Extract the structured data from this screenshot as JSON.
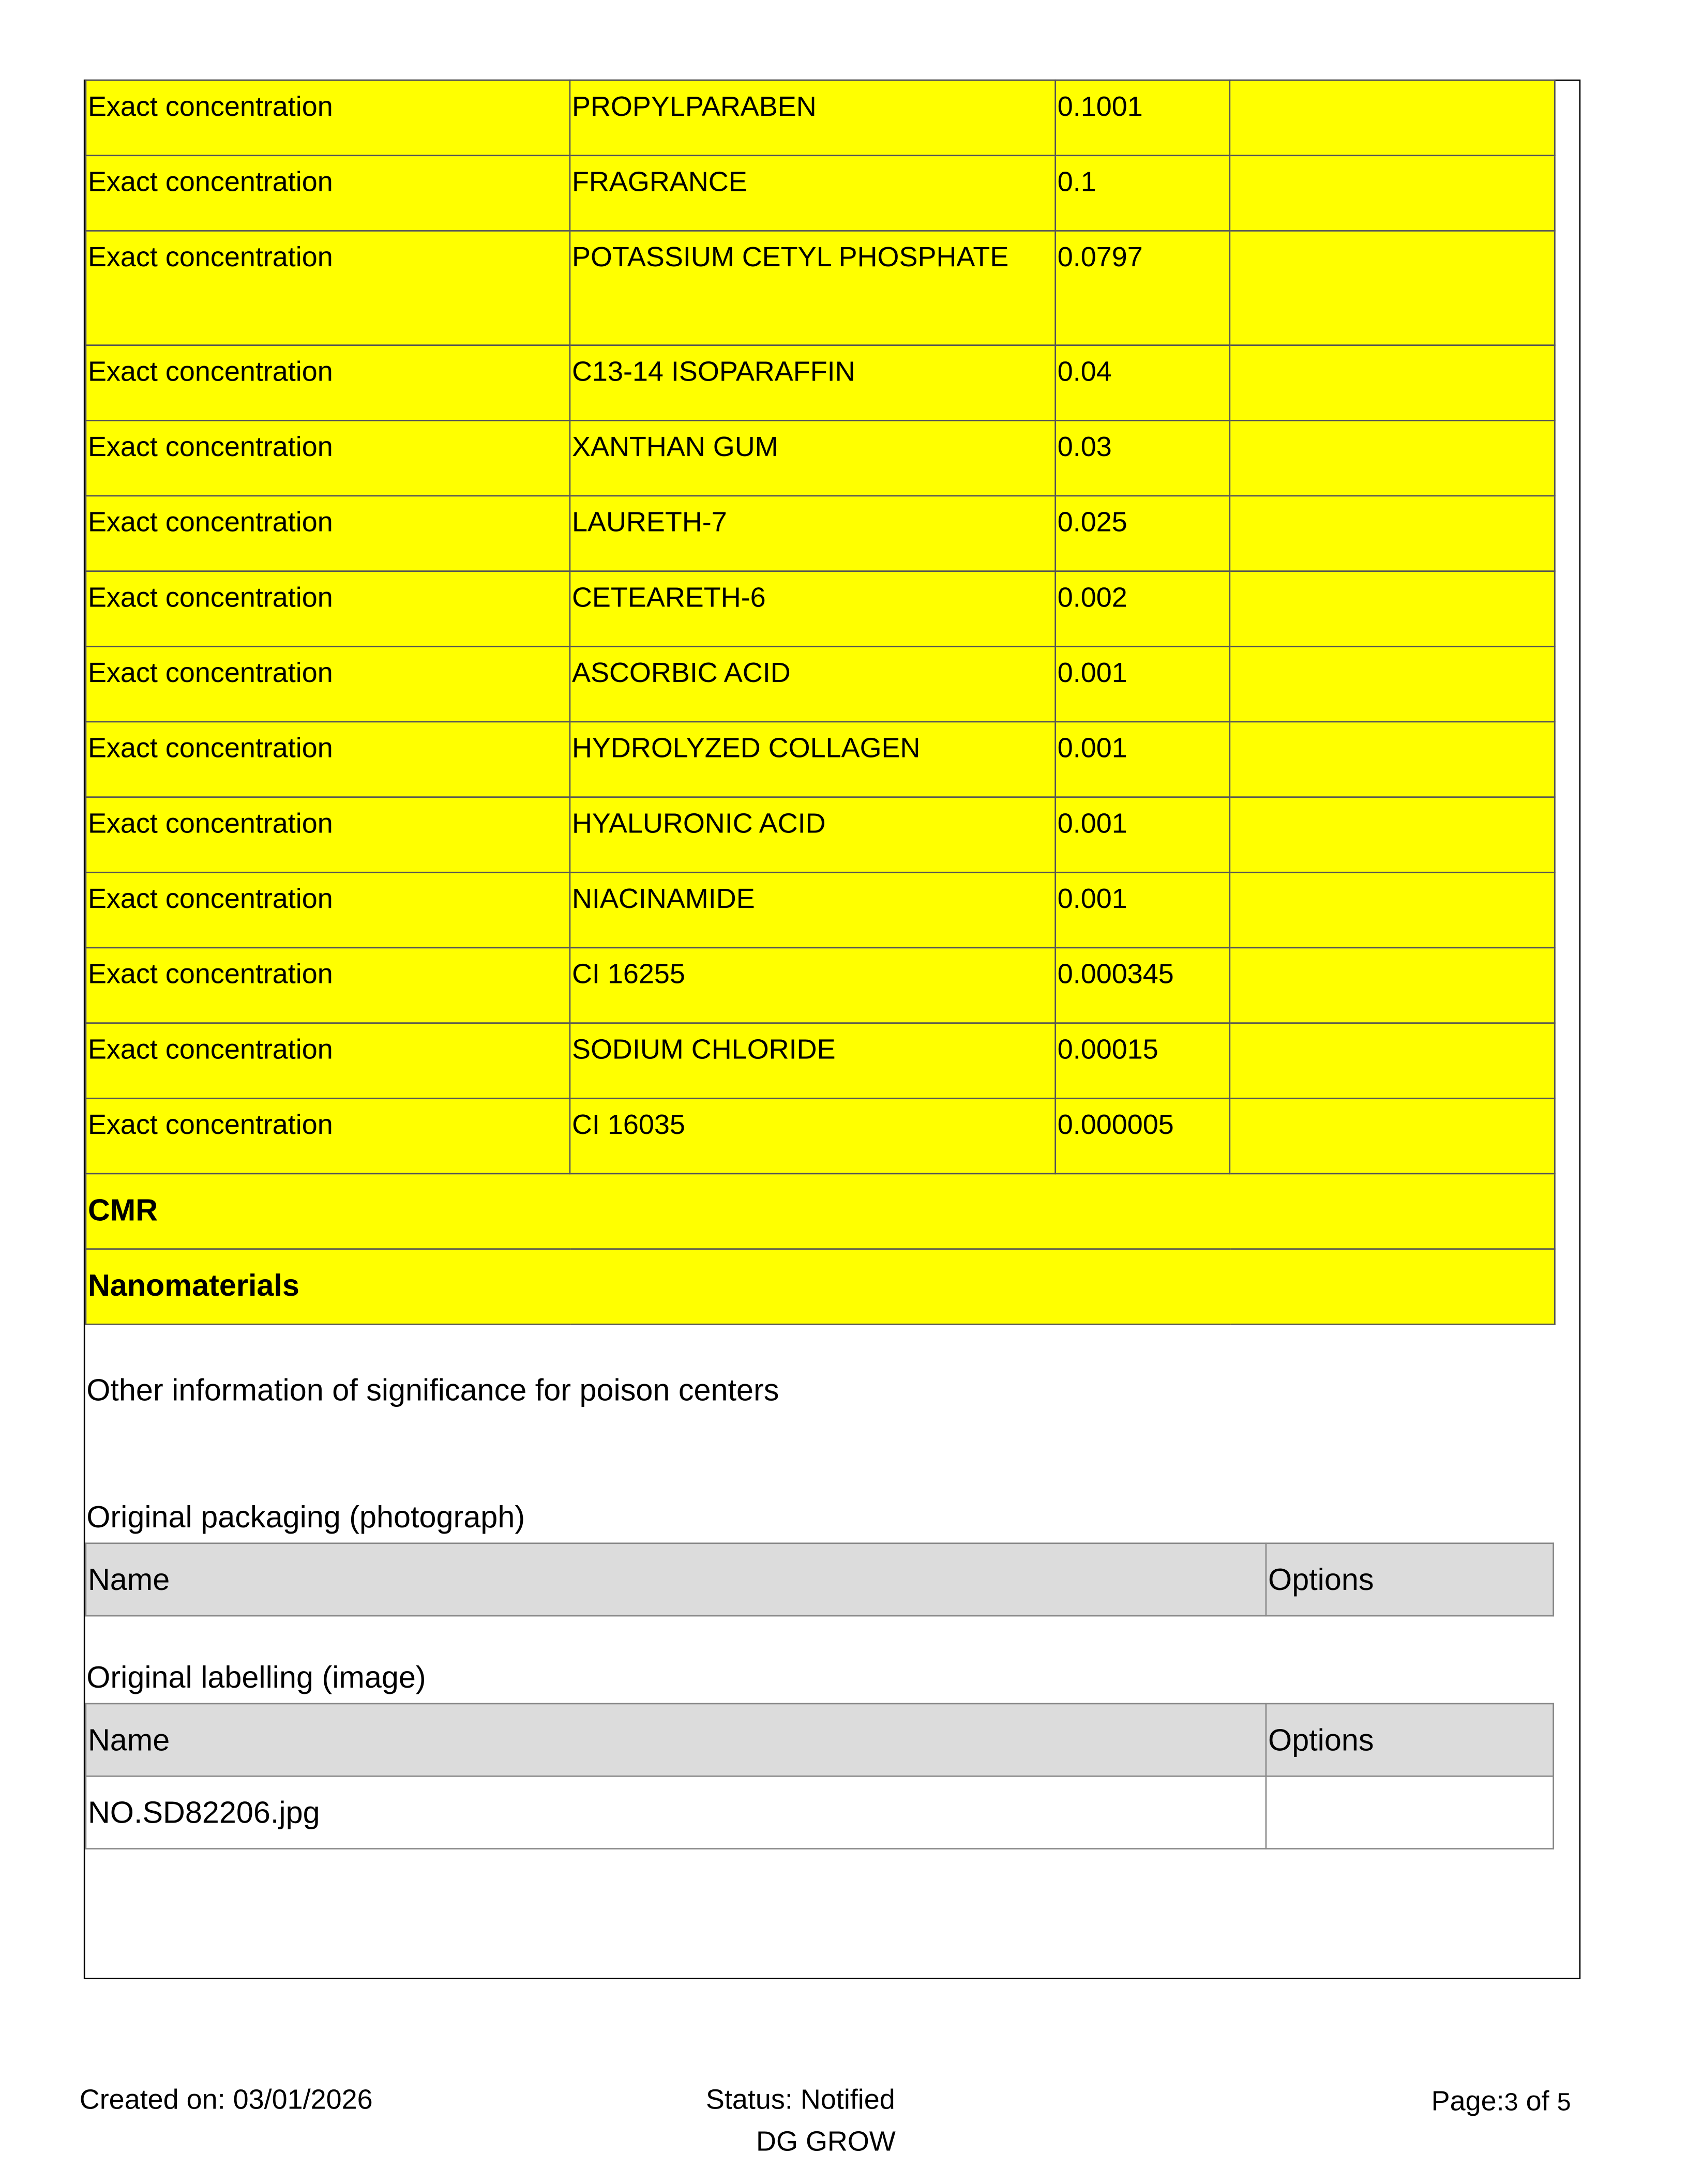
{
  "concentration_rows": [
    {
      "type": "Exact concentration",
      "ingredient": "PROPYLPARABEN",
      "value": "0.1001",
      "extra": ""
    },
    {
      "type": "Exact concentration",
      "ingredient": "FRAGRANCE",
      "value": "0.1",
      "extra": ""
    },
    {
      "type": "Exact concentration",
      "ingredient": "POTASSIUM CETYL PHOSPHATE",
      "value": "0.0797",
      "extra": ""
    },
    {
      "type": "Exact concentration",
      "ingredient": "C13-14 ISOPARAFFIN",
      "value": "0.04",
      "extra": ""
    },
    {
      "type": "Exact concentration",
      "ingredient": "XANTHAN GUM",
      "value": "0.03",
      "extra": ""
    },
    {
      "type": "Exact concentration",
      "ingredient": "LAURETH-7",
      "value": "0.025",
      "extra": ""
    },
    {
      "type": "Exact concentration",
      "ingredient": "CETEARETH-6",
      "value": "0.002",
      "extra": ""
    },
    {
      "type": "Exact concentration",
      "ingredient": "ASCORBIC ACID",
      "value": "0.001",
      "extra": ""
    },
    {
      "type": "Exact concentration",
      "ingredient": "HYDROLYZED COLLAGEN",
      "value": "0.001",
      "extra": ""
    },
    {
      "type": "Exact concentration",
      "ingredient": "HYALURONIC ACID",
      "value": "0.001",
      "extra": ""
    },
    {
      "type": "Exact concentration",
      "ingredient": "NIACINAMIDE",
      "value": "0.001",
      "extra": ""
    },
    {
      "type": "Exact concentration",
      "ingredient": "CI 16255",
      "value": "0.000345",
      "extra": ""
    },
    {
      "type": "Exact concentration",
      "ingredient": "SODIUM CHLORIDE",
      "value": "0.00015",
      "extra": ""
    },
    {
      "type": "Exact concentration",
      "ingredient": "CI 16035",
      "value": "0.000005",
      "extra": ""
    }
  ],
  "sections": {
    "cmr": "CMR",
    "nanomaterials": "Nanomaterials"
  },
  "highlight_color": "#ffff00",
  "other_info_label": "Other information of significance for poison centers",
  "packaging": {
    "title": "Original packaging (photograph)",
    "headers": [
      "Name",
      "Options"
    ],
    "rows": []
  },
  "labelling": {
    "title": "Original labelling (image)",
    "headers": [
      "Name",
      "Options"
    ],
    "rows": [
      {
        "name": "NO.SD82206.jpg",
        "options": ""
      }
    ]
  },
  "footer": {
    "created": "Created on: 03/01/2026",
    "status": "Status: Notified",
    "org": "DG GROW",
    "page_prefix": "Page:",
    "page_current": "3",
    "page_of": " of ",
    "page_total": "5"
  }
}
